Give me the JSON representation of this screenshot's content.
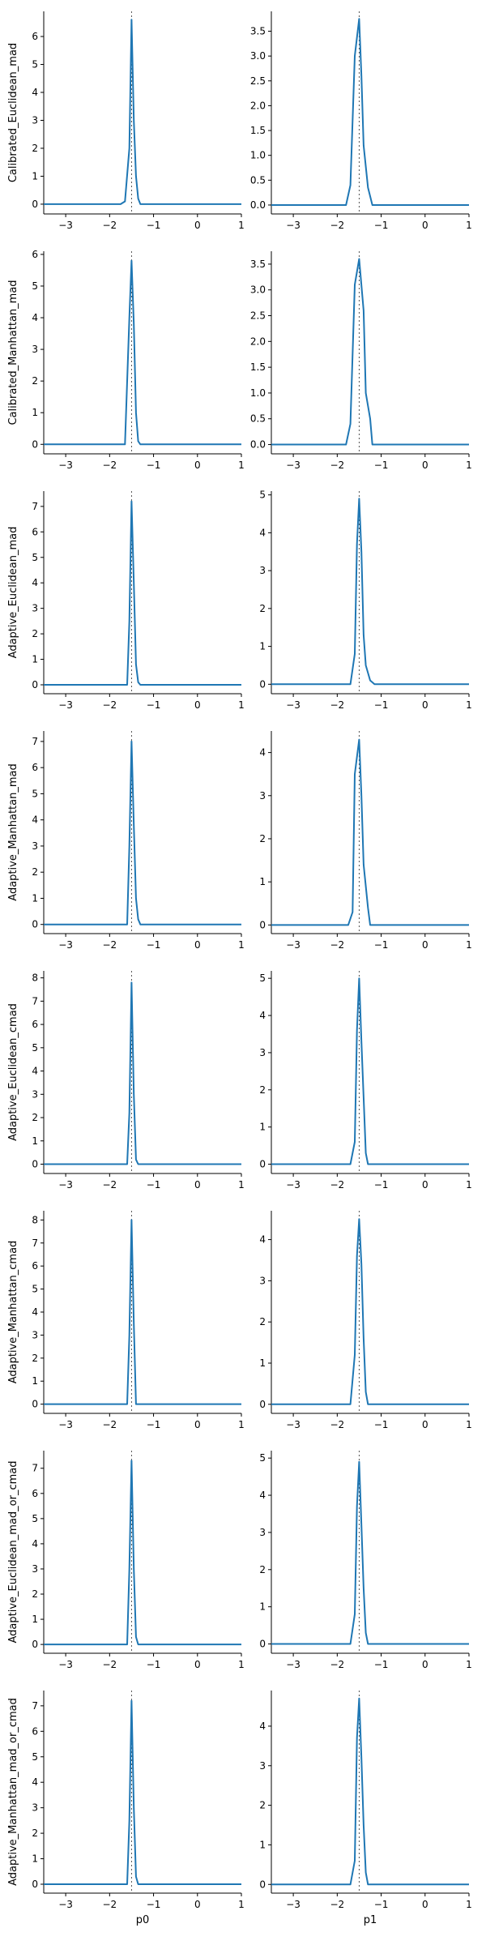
{
  "colors": {
    "series": "#1f77b4",
    "reference": "#555555"
  },
  "chart_data": {
    "type": "line",
    "layout": "grid 8 rows x 2 columns",
    "columns": [
      "p0",
      "p1"
    ],
    "rows": [
      "Calibrated_Euclidean_mad",
      "Calibrated_Manhattan_mad",
      "Adaptive_Euclidean_mad",
      "Adaptive_Manhattan_mad",
      "Adaptive_Euclidean_cmad",
      "Adaptive_Manhattan_cmad",
      "Adaptive_Euclidean_mad_or_cmad",
      "Adaptive_Manhattan_mad_or_cmad"
    ],
    "xlim": [
      -3.5,
      1
    ],
    "xticks": [
      -3,
      -2,
      -1,
      0,
      1
    ],
    "reference_x": -1.5,
    "grid": false,
    "panels": [
      {
        "row": 0,
        "col": 0,
        "ylim": [
          -0.35,
          6.9
        ],
        "yticks": [
          0,
          1,
          2,
          3,
          4,
          5,
          6
        ],
        "yticklabels": [
          "0",
          "1",
          "2",
          "3",
          "4",
          "5",
          "6"
        ],
        "x": [
          -3.5,
          -1.75,
          -1.65,
          -1.55,
          -1.5,
          -1.45,
          -1.4,
          -1.35,
          -1.3,
          1
        ],
        "y": [
          0,
          0,
          0.1,
          2.0,
          6.6,
          3.0,
          1.0,
          0.2,
          0,
          0
        ]
      },
      {
        "row": 0,
        "col": 1,
        "ylim": [
          -0.18,
          3.9
        ],
        "yticks": [
          0,
          0.5,
          1,
          1.5,
          2,
          2.5,
          3,
          3.5
        ],
        "yticklabels": [
          "0.0",
          "0.5",
          "1.0",
          "1.5",
          "2.0",
          "2.5",
          "3.0",
          "3.5"
        ],
        "x": [
          -3.5,
          -1.8,
          -1.7,
          -1.6,
          -1.5,
          -1.45,
          -1.4,
          -1.3,
          -1.2,
          1
        ],
        "y": [
          0,
          0,
          0.4,
          3.0,
          3.75,
          2.6,
          1.2,
          0.35,
          0,
          0
        ]
      },
      {
        "row": 1,
        "col": 0,
        "ylim": [
          -0.3,
          6.1
        ],
        "yticks": [
          0,
          1,
          2,
          3,
          4,
          5,
          6
        ],
        "yticklabels": [
          "0",
          "1",
          "2",
          "3",
          "4",
          "5",
          "6"
        ],
        "x": [
          -3.5,
          -1.65,
          -1.55,
          -1.5,
          -1.45,
          -1.4,
          -1.35,
          -1.3,
          1
        ],
        "y": [
          0,
          0,
          4.0,
          5.8,
          3.8,
          1.0,
          0.1,
          0,
          0
        ]
      },
      {
        "row": 1,
        "col": 1,
        "ylim": [
          -0.18,
          3.75
        ],
        "yticks": [
          0,
          0.5,
          1,
          1.5,
          2,
          2.5,
          3,
          3.5
        ],
        "yticklabels": [
          "0.0",
          "0.5",
          "1.0",
          "1.5",
          "2.0",
          "2.5",
          "3.0",
          "3.5"
        ],
        "x": [
          -3.5,
          -1.8,
          -1.7,
          -1.6,
          -1.5,
          -1.4,
          -1.35,
          -1.25,
          -1.2,
          1
        ],
        "y": [
          0,
          0,
          0.4,
          3.1,
          3.6,
          2.6,
          1.0,
          0.5,
          0,
          0
        ]
      },
      {
        "row": 2,
        "col": 0,
        "ylim": [
          -0.35,
          7.6
        ],
        "yticks": [
          0,
          1,
          2,
          3,
          4,
          5,
          6,
          7
        ],
        "yticklabels": [
          "0",
          "1",
          "2",
          "3",
          "4",
          "5",
          "6",
          "7"
        ],
        "x": [
          -3.5,
          -1.6,
          -1.55,
          -1.5,
          -1.45,
          -1.4,
          -1.35,
          -1.3,
          1
        ],
        "y": [
          0,
          0,
          2.5,
          7.2,
          4.0,
          0.8,
          0.1,
          0,
          0
        ]
      },
      {
        "row": 2,
        "col": 1,
        "ylim": [
          -0.25,
          5.1
        ],
        "yticks": [
          0,
          1,
          2,
          3,
          4,
          5
        ],
        "yticklabels": [
          "0",
          "1",
          "2",
          "3",
          "4",
          "5"
        ],
        "x": [
          -3.5,
          -1.7,
          -1.6,
          -1.55,
          -1.5,
          -1.45,
          -1.4,
          -1.35,
          -1.25,
          -1.15,
          1
        ],
        "y": [
          0,
          0,
          0.8,
          3.7,
          4.9,
          3.5,
          1.3,
          0.5,
          0.1,
          0,
          0
        ]
      },
      {
        "row": 3,
        "col": 0,
        "ylim": [
          -0.35,
          7.4
        ],
        "yticks": [
          0,
          1,
          2,
          3,
          4,
          5,
          6,
          7
        ],
        "yticklabels": [
          "0",
          "1",
          "2",
          "3",
          "4",
          "5",
          "6",
          "7"
        ],
        "x": [
          -3.5,
          -1.6,
          -1.55,
          -1.5,
          -1.45,
          -1.4,
          -1.35,
          -1.3,
          1
        ],
        "y": [
          0,
          0,
          3.0,
          7.0,
          3.8,
          1.0,
          0.2,
          0,
          0
        ]
      },
      {
        "row": 3,
        "col": 1,
        "ylim": [
          -0.2,
          4.5
        ],
        "yticks": [
          0,
          1,
          2,
          3,
          4
        ],
        "yticklabels": [
          "0",
          "1",
          "2",
          "3",
          "4"
        ],
        "x": [
          -3.5,
          -1.75,
          -1.65,
          -1.6,
          -1.5,
          -1.45,
          -1.4,
          -1.3,
          -1.25,
          1
        ],
        "y": [
          0,
          0,
          0.3,
          3.5,
          4.3,
          3.0,
          1.4,
          0.4,
          0,
          0
        ]
      },
      {
        "row": 4,
        "col": 0,
        "ylim": [
          -0.4,
          8.3
        ],
        "yticks": [
          0,
          1,
          2,
          3,
          4,
          5,
          6,
          7,
          8
        ],
        "yticklabels": [
          "0",
          "1",
          "2",
          "3",
          "4",
          "5",
          "6",
          "7",
          "8"
        ],
        "x": [
          -3.5,
          -1.6,
          -1.55,
          -1.5,
          -1.45,
          -1.4,
          -1.35,
          1
        ],
        "y": [
          0,
          0,
          2.2,
          7.8,
          3.0,
          0.2,
          0,
          0
        ]
      },
      {
        "row": 4,
        "col": 1,
        "ylim": [
          -0.25,
          5.2
        ],
        "yticks": [
          0,
          1,
          2,
          3,
          4,
          5
        ],
        "yticklabels": [
          "0",
          "1",
          "2",
          "3",
          "4",
          "5"
        ],
        "x": [
          -3.5,
          -1.7,
          -1.6,
          -1.55,
          -1.5,
          -1.45,
          -1.4,
          -1.35,
          -1.3,
          1
        ],
        "y": [
          0,
          0,
          0.6,
          3.6,
          5.0,
          3.3,
          1.8,
          0.3,
          0,
          0
        ]
      },
      {
        "row": 5,
        "col": 0,
        "ylim": [
          -0.4,
          8.4
        ],
        "yticks": [
          0,
          1,
          2,
          3,
          4,
          5,
          6,
          7,
          8
        ],
        "yticklabels": [
          "0",
          "1",
          "2",
          "3",
          "4",
          "5",
          "6",
          "7",
          "8"
        ],
        "x": [
          -3.5,
          -1.6,
          -1.55,
          -1.5,
          -1.45,
          -1.4,
          1
        ],
        "y": [
          0,
          0,
          3.0,
          8.0,
          3.5,
          0,
          0
        ]
      },
      {
        "row": 5,
        "col": 1,
        "ylim": [
          -0.22,
          4.7
        ],
        "yticks": [
          0,
          1,
          2,
          3,
          4
        ],
        "yticklabels": [
          "0",
          "1",
          "2",
          "3",
          "4"
        ],
        "x": [
          -3.5,
          -1.7,
          -1.6,
          -1.55,
          -1.5,
          -1.45,
          -1.4,
          -1.35,
          -1.3,
          1
        ],
        "y": [
          0,
          0,
          1.2,
          3.6,
          4.5,
          3.4,
          1.6,
          0.3,
          0,
          0
        ]
      },
      {
        "row": 6,
        "col": 0,
        "ylim": [
          -0.35,
          7.7
        ],
        "yticks": [
          0,
          1,
          2,
          3,
          4,
          5,
          6,
          7
        ],
        "yticklabels": [
          "0",
          "1",
          "2",
          "3",
          "4",
          "5",
          "6",
          "7"
        ],
        "x": [
          -3.5,
          -1.6,
          -1.55,
          -1.5,
          -1.45,
          -1.4,
          -1.35,
          1
        ],
        "y": [
          0,
          0,
          3.0,
          7.3,
          3.0,
          0.3,
          0,
          0
        ]
      },
      {
        "row": 6,
        "col": 1,
        "ylim": [
          -0.25,
          5.2
        ],
        "yticks": [
          0,
          1,
          2,
          3,
          4,
          5
        ],
        "yticklabels": [
          "0",
          "1",
          "2",
          "3",
          "4",
          "5"
        ],
        "x": [
          -3.5,
          -1.7,
          -1.6,
          -1.55,
          -1.5,
          -1.45,
          -1.4,
          -1.35,
          -1.3,
          1
        ],
        "y": [
          0,
          0,
          0.8,
          3.7,
          4.9,
          3.2,
          1.5,
          0.3,
          0,
          0
        ]
      },
      {
        "row": 7,
        "col": 0,
        "ylim": [
          -0.35,
          7.6
        ],
        "yticks": [
          0,
          1,
          2,
          3,
          4,
          5,
          6,
          7
        ],
        "yticklabels": [
          "0",
          "1",
          "2",
          "3",
          "4",
          "5",
          "6",
          "7"
        ],
        "x": [
          -3.5,
          -1.6,
          -1.55,
          -1.5,
          -1.45,
          -1.4,
          -1.35,
          1
        ],
        "y": [
          0,
          0,
          2.5,
          7.2,
          3.0,
          0.3,
          0,
          0
        ]
      },
      {
        "row": 7,
        "col": 1,
        "ylim": [
          -0.22,
          4.9
        ],
        "yticks": [
          0,
          1,
          2,
          3,
          4
        ],
        "yticklabels": [
          "0",
          "1",
          "2",
          "3",
          "4"
        ],
        "x": [
          -3.5,
          -1.7,
          -1.6,
          -1.55,
          -1.5,
          -1.45,
          -1.4,
          -1.35,
          -1.3,
          1
        ],
        "y": [
          0,
          0,
          0.6,
          3.7,
          4.7,
          3.2,
          1.5,
          0.3,
          0,
          0
        ]
      }
    ]
  }
}
